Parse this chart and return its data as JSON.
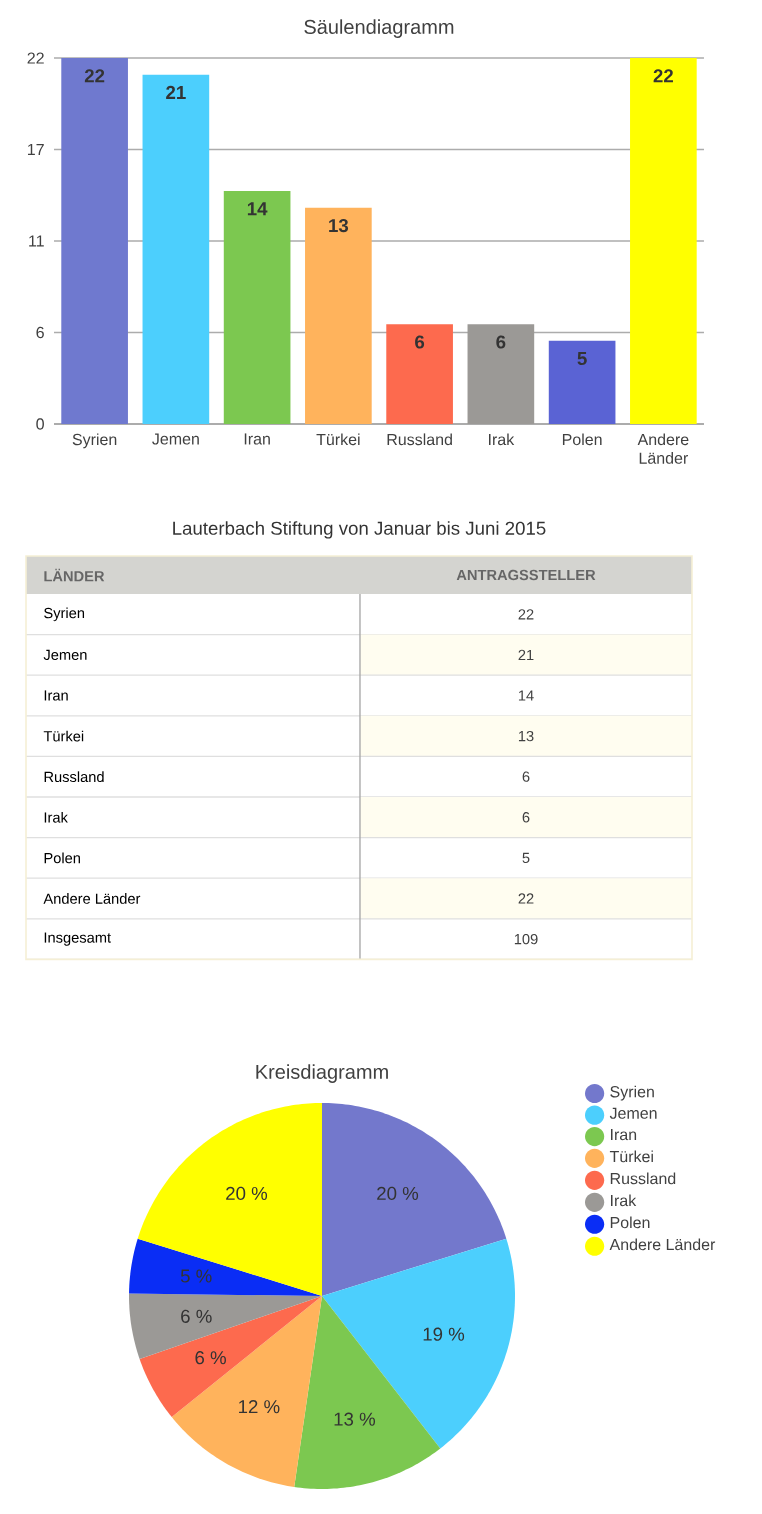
{
  "chart_data": [
    {
      "type": "bar",
      "title": "Säulendiagramm",
      "categories": [
        "Syrien",
        "Jemen",
        "Iran",
        "Türkei",
        "Russland",
        "Irak",
        "Polen",
        "Andere Länder"
      ],
      "values": [
        22,
        21,
        14,
        13,
        6,
        6,
        5,
        22
      ],
      "colors": [
        "#6f79cf",
        "#4ccffd",
        "#7cc850",
        "#ffb35c",
        "#fd6a4e",
        "#9b9996",
        "#5a63d4",
        "#ffff00"
      ],
      "ylim": [
        0,
        22
      ],
      "yticks": [
        0,
        {
          "value": 5.5,
          "label": "6"
        },
        11,
        {
          "value": 16.5,
          "label": "17"
        },
        22
      ],
      "grid": "y",
      "data_labels": true
    },
    {
      "type": "other",
      "title": "Lauterbach Stiftung von Januar bis Juni 2015",
      "xlabel": "LÄNDER",
      "ylabel": "ANTRAGSSTELLER",
      "categories": [
        "Syrien",
        "Jemen",
        "Iran",
        "Türkei",
        "Russland",
        "Irak",
        "Polen",
        "Andere Länder",
        "Insgesamt"
      ],
      "values": [
        22,
        21,
        14,
        13,
        6,
        6,
        5,
        22,
        109
      ],
      "data_labels": true
    },
    {
      "type": "pie",
      "title": "Kreisdiagramm",
      "categories": [
        "Syrien",
        "Jemen",
        "Iran",
        "Türkei",
        "Russland",
        "Irak",
        "Polen",
        "Andere Länder"
      ],
      "values": [
        20.2,
        19.3,
        12.8,
        11.9,
        5.5,
        5.5,
        4.6,
        20.2
      ],
      "value_labels": [
        "20 %",
        "19 %",
        "13 %",
        "12 %",
        "6 %",
        "6 %",
        "5 %",
        "20 %"
      ],
      "colors": [
        "#7378cc",
        "#4ccffd",
        "#7cc850",
        "#ffb35c",
        "#fd6a4e",
        "#9b9996",
        "#0a2df5",
        "#ffff00"
      ],
      "legend": "right"
    }
  ]
}
